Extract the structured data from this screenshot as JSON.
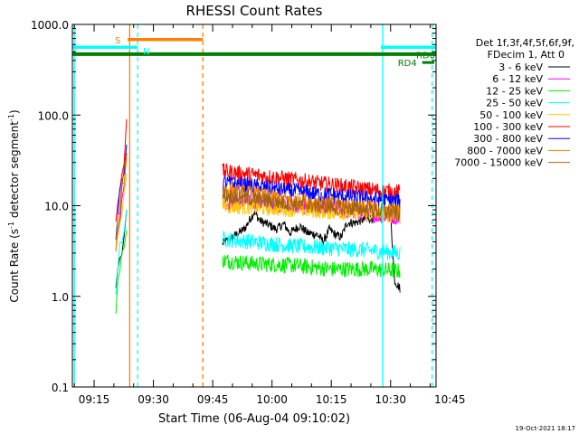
{
  "chart_data": {
    "type": "line",
    "title": "RHESSI Count Rates",
    "xlabel": "Start Time (06-Aug-04 09:10:02)",
    "ylabel_main": "Count Rate (s",
    "ylabel_sup1": "-1",
    "ylabel_mid": " detector segment",
    "ylabel_sup2": "-1",
    "ylabel_end": ")",
    "y_scale": "log",
    "ylim": [
      0.1,
      1000
    ],
    "xlim_minutes": [
      9.5,
      101.5
    ],
    "x_ticks": [
      {
        "m": 15,
        "label": "09:15"
      },
      {
        "m": 30,
        "label": "09:30"
      },
      {
        "m": 45,
        "label": "09:45"
      },
      {
        "m": 60,
        "label": "10:00"
      },
      {
        "m": 75,
        "label": "10:15"
      },
      {
        "m": 90,
        "label": "10:30"
      },
      {
        "m": 105,
        "label": "10:45"
      }
    ],
    "y_ticks": [
      {
        "v": 0.1,
        "label": "0.1"
      },
      {
        "v": 1,
        "label": "1.0"
      },
      {
        "v": 10,
        "label": "10.0"
      },
      {
        "v": 100,
        "label": "100.0"
      },
      {
        "v": 1000,
        "label": "1000.0"
      }
    ],
    "legend_header": [
      "Det 1f,3f,4f,5f,6f,9f,",
      "FDecim 1, Att 0"
    ],
    "legend_placement": "right",
    "series": [
      {
        "name": "3 - 6 keV",
        "color": "#000000",
        "values": [
          [
            47.5,
            3.8
          ],
          [
            50,
            4.5
          ],
          [
            53,
            5.5
          ],
          [
            55.5,
            8.5
          ],
          [
            57,
            6.8
          ],
          [
            59,
            6.2
          ],
          [
            61,
            5.5
          ],
          [
            63,
            6.3
          ],
          [
            64.5,
            5.0
          ],
          [
            67,
            6.0
          ],
          [
            69,
            5.0
          ],
          [
            71.5,
            4.8
          ],
          [
            73,
            4.0
          ],
          [
            74.5,
            5.5
          ],
          [
            76,
            4.8
          ],
          [
            77.5,
            4.5
          ],
          [
            79,
            6.5
          ],
          [
            81,
            6.5
          ],
          [
            83,
            7.0
          ],
          [
            85,
            7.3
          ],
          [
            87,
            7.4
          ],
          [
            90,
            7.6
          ],
          [
            91,
            1.5
          ],
          [
            92.5,
            1.2
          ]
        ]
      },
      {
        "name": "6 - 12 keV",
        "color": "#ff00ff",
        "values": [
          [
            47.5,
            11.0
          ],
          [
            55,
            10.8
          ],
          [
            65,
            10.0
          ],
          [
            75,
            9.2
          ],
          [
            85,
            8.0
          ],
          [
            92.5,
            7.5
          ]
        ]
      },
      {
        "name": "12 - 25 keV",
        "color": "#00ee00",
        "values": [
          [
            47.5,
            2.5
          ],
          [
            55,
            2.3
          ],
          [
            65,
            2.2
          ],
          [
            75,
            2.0
          ],
          [
            85,
            2.0
          ],
          [
            92.5,
            1.9
          ]
        ]
      },
      {
        "name": "25 - 50 keV",
        "color": "#00ffff",
        "values": [
          [
            47.5,
            4.3
          ],
          [
            55,
            4.0
          ],
          [
            65,
            3.6
          ],
          [
            75,
            3.4
          ],
          [
            85,
            3.2
          ],
          [
            92.5,
            3.0
          ]
        ]
      },
      {
        "name": "50 - 100 keV",
        "color": "#ffc800",
        "values": [
          [
            47.5,
            10.0
          ],
          [
            55,
            9.6
          ],
          [
            65,
            9.2
          ],
          [
            75,
            8.6
          ],
          [
            85,
            8.2
          ],
          [
            92.5,
            7.8
          ]
        ]
      },
      {
        "name": "100 - 300 keV",
        "color": "#ff0000",
        "values": [
          [
            47.5,
            24.0
          ],
          [
            55,
            22.0
          ],
          [
            65,
            19.5
          ],
          [
            75,
            17.0
          ],
          [
            85,
            15.0
          ],
          [
            92.5,
            14.0
          ]
        ]
      },
      {
        "name": "300 - 800 keV",
        "color": "#0000ff",
        "values": [
          [
            47.5,
            18.0
          ],
          [
            55,
            16.5
          ],
          [
            65,
            14.5
          ],
          [
            75,
            13.0
          ],
          [
            85,
            12.0
          ],
          [
            92.5,
            11.0
          ]
        ]
      },
      {
        "name": "800 - 7000 keV",
        "color": "#ff8000",
        "values": [
          [
            47.5,
            15.0
          ],
          [
            55,
            13.5
          ],
          [
            65,
            11.5
          ],
          [
            75,
            10.5
          ],
          [
            85,
            9.5
          ],
          [
            92.5,
            8.5
          ]
        ]
      },
      {
        "name": "7000 - 15000 keV",
        "color": "#a06414",
        "values": [
          [
            47.5,
            13.0
          ],
          [
            55,
            12.0
          ],
          [
            65,
            10.5
          ],
          [
            75,
            9.8
          ],
          [
            85,
            9.0
          ],
          [
            92.5,
            8.2
          ]
        ]
      }
    ],
    "annotations": {
      "attenuator_bar": {
        "label": "S",
        "start": 23.5,
        "end": 42.5,
        "value": 680,
        "color": "#ff8000"
      },
      "saa_bars": [
        {
          "label": "N",
          "start": 9.5,
          "end": 26,
          "value": 560,
          "color": "#00ffff"
        },
        {
          "label": "",
          "start": 87.5,
          "end": 101.5,
          "value": 560,
          "color": "#00ffff"
        }
      ],
      "night_bar": {
        "start": 9.5,
        "end": 101.5,
        "value": 470,
        "color": "#008000"
      },
      "rd_labels": [
        {
          "label": "RD0",
          "m": 101.5,
          "value": 465
        },
        {
          "label": "RD4",
          "m": 98,
          "value": 380
        }
      ],
      "vlines": [
        {
          "m": 10.0,
          "color": "#00ffff",
          "dash": false
        },
        {
          "m": 24.0,
          "color": "#ff8000",
          "dash": false
        },
        {
          "m": 26.0,
          "color": "#00ffff",
          "dash": true
        },
        {
          "m": 42.5,
          "color": "#ff8000",
          "dash": true
        },
        {
          "m": 88.0,
          "color": "#00ffff",
          "dash": false
        },
        {
          "m": 100.5,
          "color": "#00ffff",
          "dash": true
        }
      ]
    },
    "footer_date": "19-Oct-2021 18:17"
  }
}
